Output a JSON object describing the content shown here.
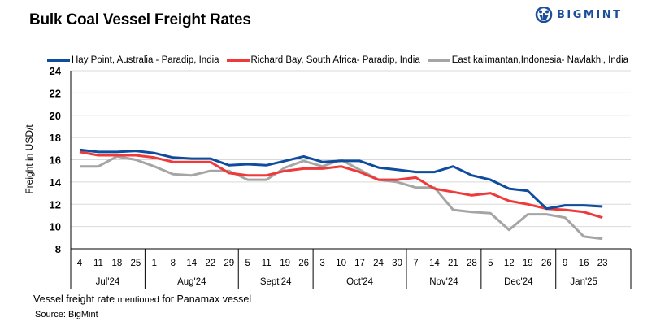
{
  "header": {
    "title": "Bulk Coal Vessel Freight Rates",
    "logo_text": "BIGMINT",
    "logo_icon": "bigmint-globe-icon",
    "brand_color": "#1b4f9c"
  },
  "footer": {
    "note_part1": "Vessel freight rate ",
    "note_part2": "mentioned",
    "note_part3": " for Panamax  vessel",
    "source": "Source:  BigMint"
  },
  "chart_data": {
    "type": "line",
    "title": "Bulk Coal Vessel Freight Rates",
    "xlabel": "",
    "ylabel": "Freight  in USD/t",
    "ylim": [
      8,
      24
    ],
    "yticks": [
      8,
      10,
      12,
      14,
      16,
      18,
      20,
      22,
      24
    ],
    "grid": true,
    "legend_position": "top",
    "x": [
      "4",
      "11",
      "18",
      "25",
      "1",
      "8",
      "14",
      "22",
      "29",
      "5",
      "11",
      "19",
      "26",
      "3",
      "10",
      "17",
      "24",
      "30",
      "7",
      "14",
      "21",
      "28",
      "5",
      "12",
      "19",
      "26",
      "9",
      "16",
      "23"
    ],
    "month_groups": [
      {
        "label": "Jul'24",
        "count": 4
      },
      {
        "label": "Aug'24",
        "count": 5
      },
      {
        "label": "Sept'24",
        "count": 4
      },
      {
        "label": "Oct'24",
        "count": 5
      },
      {
        "label": "Nov'24",
        "count": 4
      },
      {
        "label": "Dec'24",
        "count": 4
      },
      {
        "label": "Jan'25",
        "count": 3
      }
    ],
    "series": [
      {
        "name": "Hay Point, Australia - Paradip, India",
        "color": "#0f4c9e",
        "values": [
          16.9,
          16.7,
          16.7,
          16.8,
          16.6,
          16.2,
          16.1,
          16.1,
          15.5,
          15.6,
          15.5,
          15.9,
          16.3,
          15.8,
          15.9,
          15.9,
          15.3,
          15.1,
          14.9,
          14.9,
          15.4,
          14.6,
          14.2,
          13.4,
          13.2,
          11.6,
          11.9,
          11.9,
          11.8
        ]
      },
      {
        "name": "Richard Bay, South Africa- Paradip, India",
        "color": "#ee3a3a",
        "values": [
          16.7,
          16.4,
          16.4,
          16.4,
          16.2,
          15.8,
          15.8,
          15.8,
          14.8,
          14.6,
          14.6,
          15.0,
          15.2,
          15.2,
          15.4,
          14.9,
          14.2,
          14.2,
          14.4,
          13.4,
          13.1,
          12.8,
          13.0,
          12.3,
          12.0,
          11.6,
          11.5,
          11.3,
          10.8
        ]
      },
      {
        "name": "East kalimantan,Indonesia- Navlakhi, India",
        "color": "#a5a5a5",
        "values": [
          15.4,
          15.4,
          16.3,
          16.0,
          15.4,
          14.7,
          14.6,
          15.0,
          15.0,
          14.2,
          14.2,
          15.3,
          15.9,
          15.4,
          16.0,
          15.1,
          14.2,
          14.0,
          13.5,
          13.5,
          11.5,
          11.3,
          11.2,
          9.7,
          11.1,
          11.1,
          10.8,
          9.1,
          8.9
        ]
      }
    ]
  }
}
